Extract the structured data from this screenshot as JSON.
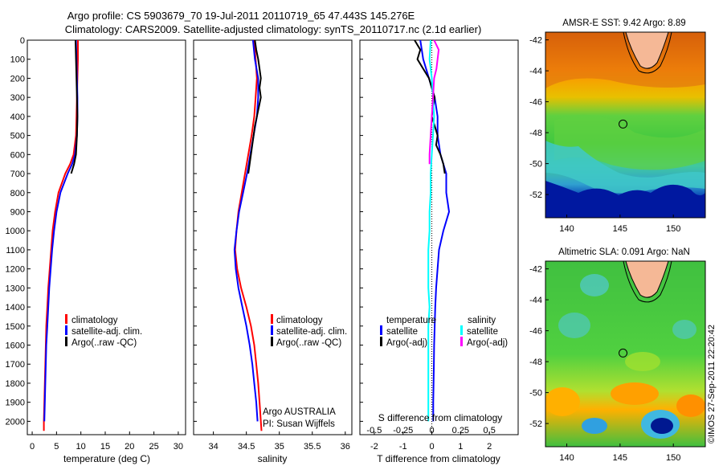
{
  "header": {
    "line1": "Argo profile: CS 5903679_70 19-Jul-2011 20110719_65 47.443S 145.276E",
    "line2": "Climatology: CARS2009. Satellite-adjusted climatology: synTS_20110717.nc (2.1d earlier)"
  },
  "depth_axis": {
    "ticks": [
      0,
      100,
      200,
      300,
      400,
      500,
      600,
      700,
      800,
      900,
      1000,
      1100,
      1200,
      1300,
      1400,
      1500,
      1600,
      1700,
      1800,
      1900,
      2000
    ],
    "ylim": [
      2070,
      0
    ]
  },
  "colors": {
    "climatology": "#ff0000",
    "satellite": "#0000ff",
    "argo": "#000000",
    "s_satellite": "#00ffff",
    "s_argo": "#ff00ff"
  },
  "chart_data": [
    {
      "type": "line",
      "name": "temperature",
      "xlabel": "temperature (deg C)",
      "xlim": [
        -1,
        31.5
      ],
      "xticks": [
        0,
        5,
        10,
        15,
        20,
        25,
        30
      ],
      "legend": {
        "climatology": "climatology",
        "satellite": "satellite-adj. clim.",
        "argo": "Argo(..raw -QC)"
      },
      "series": [
        {
          "name": "climatology",
          "depth": [
            0,
            100,
            200,
            300,
            400,
            500,
            600,
            650,
            700,
            800,
            900,
            1000,
            1100,
            1200,
            1300,
            1400,
            1500,
            1600,
            1700,
            1800,
            1900,
            2000,
            2050
          ],
          "values": [
            9.4,
            9.4,
            9.3,
            9.2,
            9.1,
            9.0,
            8.5,
            7.8,
            6.8,
            5.4,
            4.7,
            4.2,
            3.9,
            3.6,
            3.3,
            3.1,
            2.9,
            2.8,
            2.7,
            2.6,
            2.5,
            2.4,
            2.4
          ]
        },
        {
          "name": "satellite",
          "depth": [
            0,
            100,
            200,
            300,
            400,
            500,
            600,
            650,
            700,
            800,
            900,
            1000,
            1100,
            1200,
            1300,
            1400,
            1500,
            1600,
            1700,
            1800,
            1900,
            2000
          ],
          "values": [
            9.0,
            9.1,
            9.2,
            9.3,
            9.3,
            9.2,
            8.8,
            8.2,
            7.3,
            5.8,
            5.0,
            4.5,
            4.1,
            3.8,
            3.5,
            3.3,
            3.1,
            2.9,
            2.8,
            2.7,
            2.6,
            2.5
          ]
        },
        {
          "name": "argo",
          "depth": [
            0,
            100,
            200,
            300,
            400,
            500,
            600,
            650,
            700
          ],
          "values": [
            8.9,
            9.0,
            9.1,
            9.2,
            9.3,
            9.2,
            9.0,
            8.6,
            8.0
          ]
        }
      ]
    },
    {
      "type": "line",
      "name": "salinity",
      "xlabel": "salinity",
      "xlim": [
        33.7,
        36.1
      ],
      "xticks": [
        34,
        34.5,
        35,
        35.5,
        36
      ],
      "legend": {
        "climatology": "climatology",
        "satellite": "satellite-adj. clim.",
        "argo": "Argo(..raw -QC)"
      },
      "annotation": {
        "line1": "Argo AUSTRALIA",
        "line2": "PI: Susan Wijffels"
      },
      "series": [
        {
          "name": "climatology",
          "depth": [
            0,
            100,
            200,
            300,
            400,
            500,
            600,
            700,
            800,
            900,
            1000,
            1100,
            1200,
            1300,
            1400,
            1500,
            1600,
            1700,
            1800,
            1900,
            2000,
            2050
          ],
          "values": [
            34.62,
            34.64,
            34.66,
            34.64,
            34.62,
            34.58,
            34.53,
            34.48,
            34.43,
            34.38,
            34.35,
            34.33,
            34.36,
            34.42,
            34.5,
            34.57,
            34.62,
            34.65,
            34.68,
            34.7,
            34.72,
            34.73
          ]
        },
        {
          "name": "satellite",
          "depth": [
            0,
            100,
            200,
            300,
            400,
            500,
            600,
            700,
            800,
            900,
            1000,
            1100,
            1200,
            1300,
            1400,
            1500,
            1600,
            1700,
            1800,
            1900,
            2000
          ],
          "values": [
            34.6,
            34.63,
            34.68,
            34.68,
            34.66,
            34.61,
            34.56,
            34.51,
            34.45,
            34.39,
            34.35,
            34.32,
            34.34,
            34.38,
            34.44,
            34.5,
            34.55,
            34.59,
            34.62,
            34.65,
            34.67
          ]
        },
        {
          "name": "argo",
          "depth": [
            0,
            50,
            100,
            150,
            200,
            250,
            300,
            350,
            400,
            450,
            500,
            600,
            700
          ],
          "values": [
            34.63,
            34.65,
            34.68,
            34.7,
            34.72,
            34.7,
            34.72,
            34.69,
            34.66,
            34.63,
            34.61,
            34.57,
            34.53
          ]
        }
      ]
    },
    {
      "type": "line",
      "name": "difference",
      "xlabel": "T difference from climatology",
      "xlim": [
        -2.5,
        3.0
      ],
      "xticks": [
        -2,
        -1,
        0,
        1,
        2
      ],
      "top_label": "S difference from climatology",
      "s_ticks_values": [
        -0.5,
        -0.25,
        0,
        0.25,
        0.5
      ],
      "s_ticks_labels": [
        "-0.5",
        "-0.25",
        "0",
        "0.25",
        "0.5"
      ],
      "legend": {
        "temperature_header": "temperature",
        "salinity_header": "salinity",
        "t_satellite": "satellite",
        "t_argo": "Argo(-adj)",
        "s_satellite": "satellite",
        "s_argo": "Argo(-adj)"
      },
      "series": [
        {
          "name": "t_satellite",
          "depth": [
            0,
            100,
            200,
            300,
            400,
            500,
            600,
            700,
            800,
            900,
            1000,
            1100,
            1200,
            1300,
            1400,
            1500,
            1600,
            1700,
            1800,
            1900,
            2000
          ],
          "values": [
            -0.4,
            -0.3,
            -0.1,
            0.1,
            0.2,
            0.2,
            0.3,
            0.5,
            0.5,
            0.6,
            0.4,
            0.25,
            0.2,
            0.15,
            0.12,
            0.1,
            0.08,
            0.07,
            0.06,
            0.05,
            0.05
          ]
        },
        {
          "name": "t_argo",
          "depth": [
            0,
            50,
            100,
            150,
            200,
            250,
            300,
            350,
            400,
            450,
            500,
            550,
            600,
            650,
            700
          ],
          "values": [
            -0.6,
            -0.4,
            -0.5,
            -0.3,
            -0.1,
            0.0,
            0.1,
            0.05,
            0.0,
            0.1,
            0.2,
            0.15,
            0.3,
            0.4,
            0.45
          ]
        },
        {
          "name": "s_satellite",
          "depth": [
            0,
            100,
            200,
            300,
            400,
            500,
            600,
            700,
            800,
            900,
            1000,
            1100,
            1200,
            1300,
            1400,
            1500,
            1600,
            1700,
            1800,
            1900,
            2000
          ],
          "values": [
            -0.01,
            -0.02,
            0.0,
            0.01,
            0.02,
            0.01,
            0.0,
            -0.01,
            -0.01,
            -0.02,
            -0.02,
            -0.03,
            -0.03,
            -0.03,
            -0.02,
            -0.03,
            -0.03,
            -0.03,
            -0.03,
            -0.03,
            -0.03
          ]
        },
        {
          "name": "s_argo",
          "depth": [
            0,
            50,
            100,
            150,
            200,
            300,
            400,
            500,
            600,
            650
          ],
          "values": [
            0.02,
            0.06,
            0.05,
            0.04,
            0.02,
            0.01,
            0.0,
            -0.01,
            -0.02,
            -0.02
          ]
        }
      ]
    }
  ],
  "maps": [
    {
      "name": "sst",
      "title": "AMSR-E SST: 9.42 Argo: 8.89",
      "xticks": [
        140,
        145,
        150
      ],
      "yticks": [
        -42,
        -44,
        -46,
        -48,
        -50,
        -52
      ],
      "xlim": [
        138,
        153
      ],
      "ylim": [
        -53.5,
        -41.5
      ],
      "float_position": {
        "lon": 145.276,
        "lat": -47.443
      }
    },
    {
      "name": "sla",
      "title": "Altimetric SLA: 0.091 Argo: NaN",
      "xticks": [
        140,
        145,
        150
      ],
      "yticks": [
        -42,
        -44,
        -46,
        -48,
        -50,
        -52
      ],
      "xlim": [
        138,
        153
      ],
      "ylim": [
        -53.5,
        -41.5
      ],
      "float_position": {
        "lon": 145.276,
        "lat": -47.443
      }
    }
  ],
  "footer": {
    "stamp": "©IMOS 27-Sep-2011 22:20:42"
  }
}
